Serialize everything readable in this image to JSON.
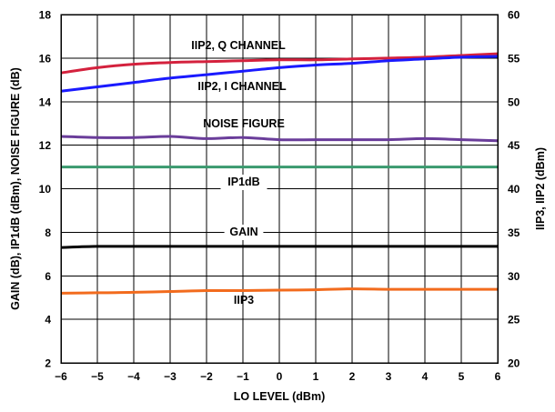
{
  "chart_data": {
    "type": "line",
    "xlabel": "LO LEVEL (dBm)",
    "ylabel": "GAIN (dB), IP1dB (dBm), NOISE FIGURE (dB)",
    "ylabel_right": "IIP3, IIP2 (dBm)",
    "xlim": [
      -6,
      6
    ],
    "ylim": [
      2,
      18
    ],
    "ylim_right": [
      20,
      60
    ],
    "x_ticks": [
      "−6",
      "−5",
      "−4",
      "−3",
      "−2",
      "−1",
      "0",
      "1",
      "2",
      "3",
      "4",
      "5",
      "6"
    ],
    "y_ticks_left": [
      "2",
      "4",
      "6",
      "8",
      "10",
      "12",
      "14",
      "16",
      "18"
    ],
    "y_ticks_right": [
      "20",
      "25",
      "30",
      "35",
      "40",
      "45",
      "50",
      "55",
      "60"
    ],
    "grid": true,
    "x": [
      -6,
      -5,
      -4,
      -3,
      -2,
      -1,
      0,
      1,
      2,
      3,
      4,
      5,
      6
    ],
    "series": [
      {
        "name": "IIP2, Q CHANNEL",
        "axis": "right",
        "color": "#d4213d",
        "values": [
          53.3,
          53.9,
          54.3,
          54.5,
          54.6,
          54.7,
          54.8,
          54.8,
          54.9,
          55.0,
          55.1,
          55.3,
          55.5
        ]
      },
      {
        "name": "IIP2, I CHANNEL",
        "axis": "right",
        "color": "#1a1aff",
        "values": [
          51.2,
          51.7,
          52.2,
          52.7,
          53.1,
          53.5,
          53.9,
          54.2,
          54.4,
          54.7,
          54.9,
          55.1,
          55.2
        ]
      },
      {
        "name": "NOISE FIGURE",
        "axis": "left",
        "color": "#6a3d9a",
        "values": [
          12.4,
          12.35,
          12.35,
          12.4,
          12.3,
          12.35,
          12.25,
          12.25,
          12.25,
          12.25,
          12.3,
          12.25,
          12.2
        ]
      },
      {
        "name": "IP1dB",
        "axis": "left",
        "color": "#3a9a6e",
        "values": [
          11.0,
          11.0,
          11.0,
          11.0,
          11.0,
          11.0,
          11.0,
          11.0,
          11.0,
          11.0,
          11.0,
          11.0,
          11.0
        ]
      },
      {
        "name": "GAIN",
        "axis": "left",
        "color": "#000000",
        "values": [
          7.3,
          7.35,
          7.35,
          7.35,
          7.35,
          7.35,
          7.35,
          7.35,
          7.35,
          7.35,
          7.35,
          7.35,
          7.35
        ]
      },
      {
        "name": "IIP3",
        "axis": "right",
        "color": "#f26b1d",
        "values": [
          28.0,
          28.05,
          28.1,
          28.2,
          28.3,
          28.3,
          28.35,
          28.4,
          28.5,
          28.45,
          28.45,
          28.45,
          28.45
        ]
      }
    ],
    "annotations": [
      "IIP2, Q CHANNEL",
      "IIP2, I CHANNEL",
      "NOISE FIGURE",
      "IP1dB",
      "GAIN",
      "IIP3"
    ]
  }
}
